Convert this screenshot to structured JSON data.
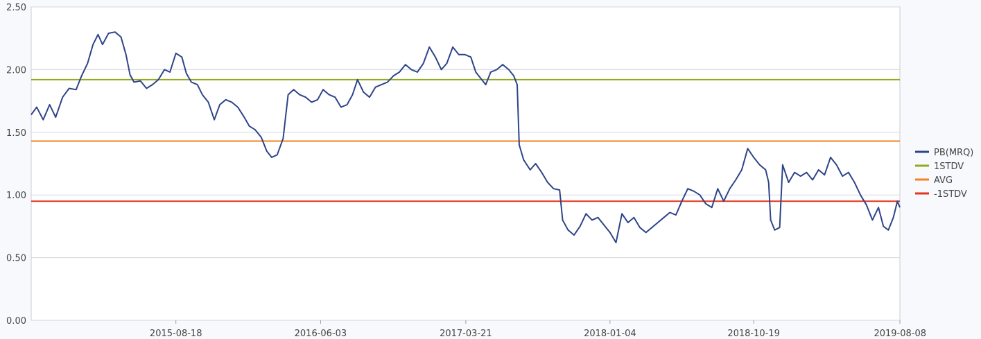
{
  "chart_data": {
    "type": "line",
    "title": "",
    "xlabel": "",
    "ylabel": "",
    "ylim": [
      0,
      2.5
    ],
    "y_ticks": [
      "0.00",
      "0.50",
      "1.00",
      "1.50",
      "2.00",
      "2.50"
    ],
    "x_range": [
      "2014-11-01",
      "2019-08-08"
    ],
    "x_ticks": [
      "2015-08-18",
      "2016-06-03",
      "2017-03-21",
      "2018-01-04",
      "2018-10-19",
      "2019-08-08"
    ],
    "grid": "horizontal",
    "legend_position": "right",
    "series": [
      {
        "name": "PB(MRQ)",
        "color": "#2e4489",
        "points": [
          [
            "2014-11-01",
            1.64
          ],
          [
            "2014-11-12",
            1.7
          ],
          [
            "2014-11-25",
            1.6
          ],
          [
            "2014-12-08",
            1.72
          ],
          [
            "2014-12-20",
            1.62
          ],
          [
            "2015-01-03",
            1.78
          ],
          [
            "2015-01-16",
            1.85
          ],
          [
            "2015-01-30",
            1.84
          ],
          [
            "2015-02-10",
            1.95
          ],
          [
            "2015-02-22",
            2.05
          ],
          [
            "2015-03-05",
            2.2
          ],
          [
            "2015-03-15",
            2.28
          ],
          [
            "2015-03-24",
            2.2
          ],
          [
            "2015-04-05",
            2.29
          ],
          [
            "2015-04-18",
            2.3
          ],
          [
            "2015-04-30",
            2.26
          ],
          [
            "2015-05-10",
            2.12
          ],
          [
            "2015-05-18",
            1.96
          ],
          [
            "2015-05-26",
            1.9
          ],
          [
            "2015-06-08",
            1.91
          ],
          [
            "2015-06-20",
            1.85
          ],
          [
            "2015-07-02",
            1.88
          ],
          [
            "2015-07-14",
            1.92
          ],
          [
            "2015-07-26",
            2.0
          ],
          [
            "2015-08-06",
            1.98
          ],
          [
            "2015-08-18",
            2.13
          ],
          [
            "2015-08-30",
            2.1
          ],
          [
            "2015-09-08",
            1.97
          ],
          [
            "2015-09-18",
            1.9
          ],
          [
            "2015-09-30",
            1.88
          ],
          [
            "2015-10-10",
            1.8
          ],
          [
            "2015-10-22",
            1.74
          ],
          [
            "2015-11-03",
            1.6
          ],
          [
            "2015-11-14",
            1.72
          ],
          [
            "2015-11-26",
            1.76
          ],
          [
            "2015-12-08",
            1.74
          ],
          [
            "2015-12-20",
            1.7
          ],
          [
            "2016-01-02",
            1.62
          ],
          [
            "2016-01-12",
            1.55
          ],
          [
            "2016-01-24",
            1.52
          ],
          [
            "2016-02-05",
            1.46
          ],
          [
            "2016-02-16",
            1.35
          ],
          [
            "2016-02-26",
            1.3
          ],
          [
            "2016-03-08",
            1.32
          ],
          [
            "2016-03-20",
            1.45
          ],
          [
            "2016-03-30",
            1.8
          ],
          [
            "2016-04-10",
            1.84
          ],
          [
            "2016-04-22",
            1.8
          ],
          [
            "2016-05-04",
            1.78
          ],
          [
            "2016-05-16",
            1.74
          ],
          [
            "2016-05-28",
            1.76
          ],
          [
            "2016-06-08",
            1.84
          ],
          [
            "2016-06-20",
            1.8
          ],
          [
            "2016-07-02",
            1.78
          ],
          [
            "2016-07-14",
            1.7
          ],
          [
            "2016-07-26",
            1.72
          ],
          [
            "2016-08-06",
            1.8
          ],
          [
            "2016-08-16",
            1.92
          ],
          [
            "2016-08-28",
            1.82
          ],
          [
            "2016-09-09",
            1.78
          ],
          [
            "2016-09-21",
            1.86
          ],
          [
            "2016-10-03",
            1.88
          ],
          [
            "2016-10-15",
            1.9
          ],
          [
            "2016-10-27",
            1.95
          ],
          [
            "2016-11-08",
            1.98
          ],
          [
            "2016-11-20",
            2.04
          ],
          [
            "2016-12-02",
            2.0
          ],
          [
            "2016-12-14",
            1.98
          ],
          [
            "2016-12-26",
            2.05
          ],
          [
            "2017-01-07",
            2.18
          ],
          [
            "2017-01-19",
            2.1
          ],
          [
            "2017-01-31",
            2.0
          ],
          [
            "2017-02-11",
            2.05
          ],
          [
            "2017-02-23",
            2.18
          ],
          [
            "2017-03-07",
            2.12
          ],
          [
            "2017-03-19",
            2.12
          ],
          [
            "2017-03-31",
            2.1
          ],
          [
            "2017-04-10",
            1.98
          ],
          [
            "2017-04-20",
            1.93
          ],
          [
            "2017-04-30",
            1.88
          ],
          [
            "2017-05-10",
            1.98
          ],
          [
            "2017-05-22",
            2.0
          ],
          [
            "2017-06-03",
            2.04
          ],
          [
            "2017-06-15",
            2.0
          ],
          [
            "2017-06-25",
            1.95
          ],
          [
            "2017-07-02",
            1.88
          ],
          [
            "2017-07-06",
            1.4
          ],
          [
            "2017-07-15",
            1.28
          ],
          [
            "2017-07-28",
            1.2
          ],
          [
            "2017-08-08",
            1.25
          ],
          [
            "2017-08-20",
            1.18
          ],
          [
            "2017-09-01",
            1.1
          ],
          [
            "2017-09-13",
            1.05
          ],
          [
            "2017-09-25",
            1.04
          ],
          [
            "2017-10-01",
            0.8
          ],
          [
            "2017-10-12",
            0.72
          ],
          [
            "2017-10-24",
            0.68
          ],
          [
            "2017-11-05",
            0.75
          ],
          [
            "2017-11-17",
            0.85
          ],
          [
            "2017-11-29",
            0.8
          ],
          [
            "2017-12-11",
            0.82
          ],
          [
            "2017-12-23",
            0.76
          ],
          [
            "2018-01-04",
            0.7
          ],
          [
            "2018-01-16",
            0.62
          ],
          [
            "2018-01-28",
            0.85
          ],
          [
            "2018-02-09",
            0.78
          ],
          [
            "2018-02-21",
            0.82
          ],
          [
            "2018-03-05",
            0.74
          ],
          [
            "2018-03-17",
            0.7
          ],
          [
            "2018-03-29",
            0.74
          ],
          [
            "2018-04-10",
            0.78
          ],
          [
            "2018-04-22",
            0.82
          ],
          [
            "2018-05-04",
            0.86
          ],
          [
            "2018-05-16",
            0.84
          ],
          [
            "2018-05-28",
            0.95
          ],
          [
            "2018-06-09",
            1.05
          ],
          [
            "2018-06-21",
            1.03
          ],
          [
            "2018-07-03",
            1.0
          ],
          [
            "2018-07-15",
            0.93
          ],
          [
            "2018-07-27",
            0.9
          ],
          [
            "2018-08-08",
            1.05
          ],
          [
            "2018-08-20",
            0.95
          ],
          [
            "2018-09-01",
            1.05
          ],
          [
            "2018-09-13",
            1.12
          ],
          [
            "2018-09-25",
            1.2
          ],
          [
            "2018-10-07",
            1.37
          ],
          [
            "2018-10-19",
            1.3
          ],
          [
            "2018-10-31",
            1.24
          ],
          [
            "2018-11-12",
            1.2
          ],
          [
            "2018-11-18",
            1.1
          ],
          [
            "2018-11-22",
            0.8
          ],
          [
            "2018-11-30",
            0.72
          ],
          [
            "2018-12-10",
            0.74
          ],
          [
            "2018-12-16",
            1.24
          ],
          [
            "2018-12-28",
            1.1
          ],
          [
            "2019-01-09",
            1.18
          ],
          [
            "2019-01-21",
            1.15
          ],
          [
            "2019-02-02",
            1.18
          ],
          [
            "2019-02-14",
            1.12
          ],
          [
            "2019-02-26",
            1.2
          ],
          [
            "2019-03-10",
            1.16
          ],
          [
            "2019-03-22",
            1.3
          ],
          [
            "2019-04-03",
            1.24
          ],
          [
            "2019-04-15",
            1.15
          ],
          [
            "2019-04-27",
            1.18
          ],
          [
            "2019-05-09",
            1.1
          ],
          [
            "2019-05-21",
            1.0
          ],
          [
            "2019-06-02",
            0.92
          ],
          [
            "2019-06-14",
            0.8
          ],
          [
            "2019-06-26",
            0.9
          ],
          [
            "2019-07-06",
            0.75
          ],
          [
            "2019-07-16",
            0.72
          ],
          [
            "2019-07-26",
            0.82
          ],
          [
            "2019-08-03",
            0.95
          ],
          [
            "2019-08-08",
            0.9
          ]
        ]
      },
      {
        "name": "1STDV",
        "color": "#8faa1e",
        "value": 1.92
      },
      {
        "name": "AVG",
        "color": "#f58220",
        "value": 1.43
      },
      {
        "name": "-1STDV",
        "color": "#e5331c",
        "value": 0.95
      }
    ]
  }
}
